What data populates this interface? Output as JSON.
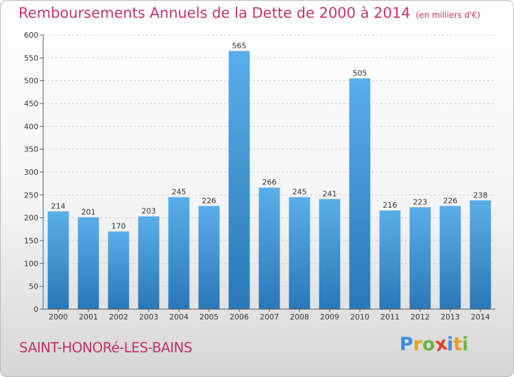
{
  "title": "Remboursements Annuels de la Dette de 2000 à 2014",
  "unit": "(en milliers d'€)",
  "town": "SAINT-HONORé-LES-BAINS",
  "logo": {
    "letters": [
      "P",
      "r",
      "o",
      "x",
      "i",
      "t",
      "i"
    ],
    "colors": [
      "#3c8fd9",
      "#e8a020",
      "#6db33f",
      "#e0412c",
      "#3c8fd9",
      "#e8a020",
      "#6db33f"
    ]
  },
  "chart_data": {
    "type": "bar",
    "categories": [
      "2000",
      "2001",
      "2002",
      "2003",
      "2004",
      "2005",
      "2006",
      "2007",
      "2008",
      "2009",
      "2010",
      "2011",
      "2012",
      "2013",
      "2014"
    ],
    "values": [
      214,
      201,
      170,
      203,
      245,
      226,
      565,
      266,
      245,
      241,
      505,
      216,
      223,
      226,
      238
    ],
    "yticks": [
      0,
      50,
      100,
      150,
      200,
      250,
      300,
      350,
      400,
      450,
      500,
      550,
      600
    ],
    "ylim": [
      0,
      600
    ],
    "grid": true,
    "bar_color_top": "#5aaee8",
    "bar_color_bottom": "#2a78b8"
  }
}
